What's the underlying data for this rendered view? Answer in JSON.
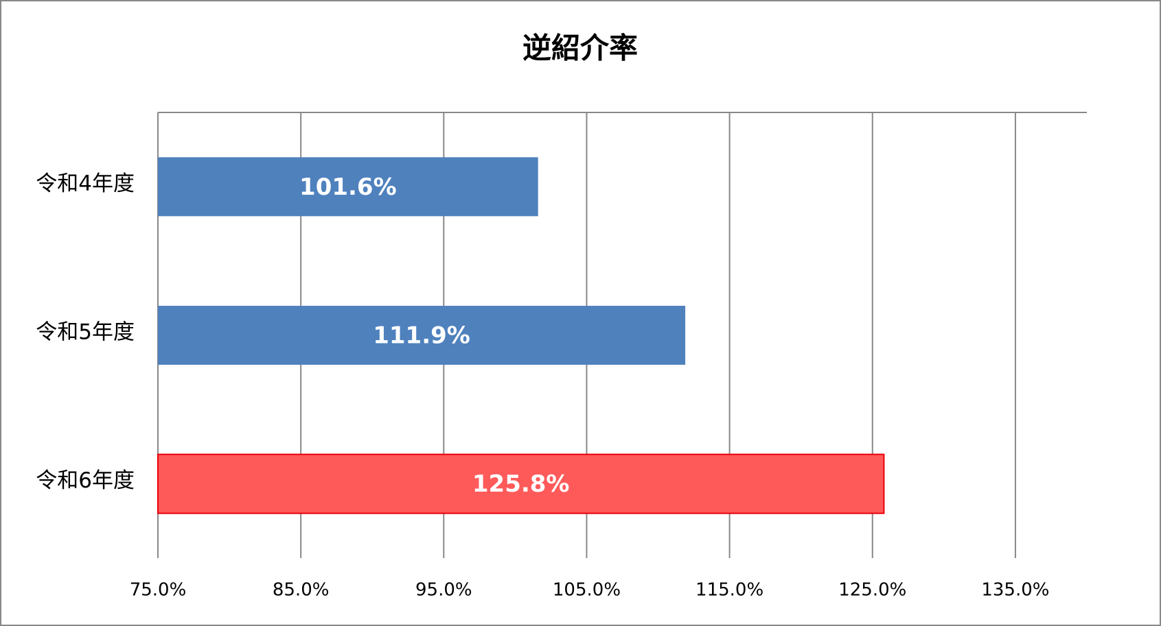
{
  "chart_data": {
    "type": "bar",
    "orientation": "horizontal",
    "title": "逆紹介率",
    "categories": [
      "令和4年度",
      "令和5年度",
      "令和6年度"
    ],
    "values": [
      101.6,
      111.9,
      125.8
    ],
    "value_labels": [
      "101.6%",
      "111.9%",
      "125.8%"
    ],
    "colors": [
      "#4f81bd",
      "#4f81bd",
      "#ff5a5a"
    ],
    "xlim": [
      75,
      140
    ],
    "xticks": [
      {
        "value": 75,
        "label": "75.0%"
      },
      {
        "value": 85,
        "label": "85.0%"
      },
      {
        "value": 95,
        "label": "95.0%"
      },
      {
        "value": 105,
        "label": "105.0%"
      },
      {
        "value": 115,
        "label": "115.0%"
      },
      {
        "value": 125,
        "label": "125.0%"
      },
      {
        "value": 135,
        "label": "135.0%"
      }
    ],
    "grid": true
  }
}
